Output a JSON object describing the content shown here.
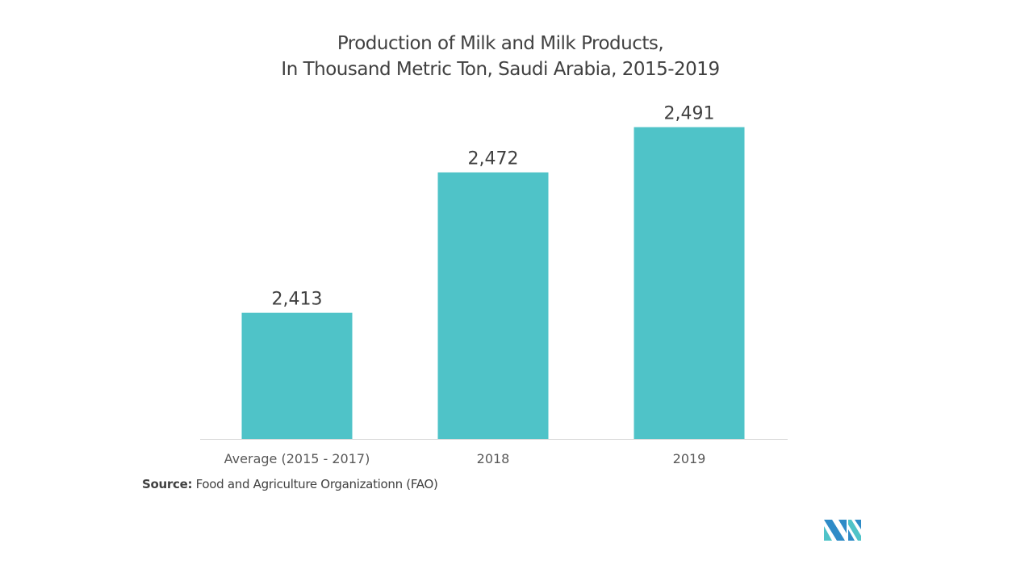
{
  "chart_data": {
    "type": "bar",
    "title_line1": "Production of Milk and Milk Products,",
    "title_line2": "In Thousand Metric Ton, Saudi Arabia, 2015-2019",
    "categories": [
      "Average (2015 - 2017)",
      "2018",
      "2019"
    ],
    "values": [
      2413,
      2472,
      2491
    ],
    "data_labels": [
      "2,413",
      "2,472",
      "2,491"
    ],
    "xlabel": "",
    "ylabel": "",
    "ylim": [
      2360,
      2520
    ],
    "grid": false,
    "bar_color": "#4fc3c8"
  },
  "source": {
    "label": "Source:",
    "text": "Food and Agriculture Organizationn (FAO)"
  },
  "logo": {
    "text": "MN",
    "colors": [
      "#2e8bc7",
      "#4fc3c8"
    ]
  }
}
